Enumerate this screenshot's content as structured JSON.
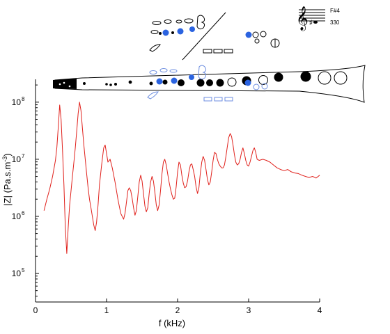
{
  "chart_data": {
    "type": "line",
    "title": "",
    "xlabel": "f (kHz)",
    "ylabel": "|Z| (Pa.s.m",
    "ylabel_sup": "-3",
    "ylabel_close": ")",
    "xlim": [
      0,
      4
    ],
    "ylim_log10": [
      4.5,
      8.4
    ],
    "y_scale": "log",
    "grid": false,
    "x_ticks": [
      0,
      1,
      2,
      3,
      4
    ],
    "x_tick_labels": [
      "0",
      "1",
      "2",
      "3",
      "4"
    ],
    "y_ticks_log10": [
      5,
      6,
      7,
      8
    ],
    "y_tick_bases": [
      "10",
      "10",
      "10",
      "10"
    ],
    "y_tick_exponents": [
      "5",
      "6",
      "7",
      "8"
    ],
    "color": "#e0201b",
    "series": [
      {
        "x": [
          0.12,
          0.16,
          0.2,
          0.24,
          0.28,
          0.3,
          0.32,
          0.34,
          0.36,
          0.38,
          0.4,
          0.42,
          0.44,
          0.46,
          0.48,
          0.5,
          0.52,
          0.54,
          0.56,
          0.58,
          0.6,
          0.62,
          0.64,
          0.66,
          0.68,
          0.7,
          0.72,
          0.74,
          0.76,
          0.78,
          0.8,
          0.82,
          0.84,
          0.86,
          0.88,
          0.9,
          0.93,
          0.96,
          0.98,
          1.0,
          1.02,
          1.05,
          1.08,
          1.12,
          1.16,
          1.2,
          1.24,
          1.26,
          1.28,
          1.3,
          1.32,
          1.34,
          1.36,
          1.38,
          1.4,
          1.42,
          1.44,
          1.46,
          1.48,
          1.5,
          1.52,
          1.54,
          1.56,
          1.58,
          1.6,
          1.62,
          1.64,
          1.66,
          1.68,
          1.7,
          1.72,
          1.74,
          1.76,
          1.78,
          1.8,
          1.82,
          1.84,
          1.86,
          1.88,
          1.9,
          1.92,
          1.94,
          1.96,
          1.98,
          2.0,
          2.02,
          2.04,
          2.06,
          2.08,
          2.1,
          2.12,
          2.14,
          2.16,
          2.18,
          2.2,
          2.22,
          2.24,
          2.26,
          2.28,
          2.3,
          2.32,
          2.34,
          2.36,
          2.38,
          2.4,
          2.42,
          2.44,
          2.46,
          2.48,
          2.5,
          2.52,
          2.54,
          2.56,
          2.58,
          2.6,
          2.62,
          2.64,
          2.66,
          2.68,
          2.7,
          2.72,
          2.74,
          2.76,
          2.78,
          2.8,
          2.82,
          2.84,
          2.86,
          2.88,
          2.9,
          2.92,
          2.94,
          2.96,
          2.98,
          3.0,
          3.02,
          3.04,
          3.06,
          3.08,
          3.1,
          3.12,
          3.15,
          3.2,
          3.25,
          3.3,
          3.35,
          3.4,
          3.45,
          3.5,
          3.55,
          3.6,
          3.65,
          3.7,
          3.75,
          3.8,
          3.85,
          3.9,
          3.95,
          4.0
        ],
        "y": [
          6.1,
          6.3,
          6.48,
          6.7,
          6.98,
          7.2,
          7.55,
          7.95,
          7.7,
          7.15,
          6.55,
          5.8,
          5.35,
          5.8,
          6.2,
          6.45,
          6.7,
          6.95,
          7.2,
          7.5,
          7.8,
          8.0,
          7.85,
          7.55,
          7.25,
          7.0,
          6.75,
          6.5,
          6.3,
          6.15,
          6.0,
          5.85,
          5.75,
          5.9,
          6.2,
          6.55,
          6.9,
          7.2,
          7.25,
          7.1,
          6.95,
          7.0,
          6.85,
          6.6,
          6.3,
          6.05,
          5.95,
          6.05,
          6.25,
          6.45,
          6.5,
          6.45,
          6.32,
          6.15,
          6.02,
          6.1,
          6.35,
          6.6,
          6.72,
          6.62,
          6.4,
          6.18,
          6.08,
          6.15,
          6.4,
          6.6,
          6.7,
          6.62,
          6.42,
          6.2,
          6.1,
          6.2,
          6.45,
          6.75,
          6.95,
          7.0,
          6.9,
          6.75,
          6.6,
          6.48,
          6.38,
          6.3,
          6.32,
          6.52,
          6.78,
          6.95,
          6.9,
          6.72,
          6.58,
          6.5,
          6.52,
          6.62,
          6.78,
          6.9,
          6.92,
          6.82,
          6.7,
          6.52,
          6.4,
          6.5,
          6.75,
          6.95,
          7.05,
          6.98,
          6.82,
          6.65,
          6.55,
          6.6,
          6.78,
          6.98,
          7.12,
          7.1,
          7.0,
          6.92,
          6.88,
          6.85,
          6.85,
          6.9,
          7.05,
          7.22,
          7.38,
          7.45,
          7.4,
          7.25,
          7.08,
          6.95,
          6.9,
          6.92,
          7.0,
          7.12,
          7.2,
          7.1,
          6.98,
          6.9,
          6.88,
          6.95,
          7.05,
          7.15,
          7.2,
          7.12,
          7.0,
          6.98,
          7.0,
          6.98,
          6.95,
          6.9,
          6.85,
          6.82,
          6.8,
          6.82,
          6.78,
          6.76,
          6.75,
          6.72,
          6.7,
          6.68,
          6.7,
          6.67,
          6.72
        ]
      }
    ]
  },
  "fingering_chart": {
    "note": "F#4",
    "frequency": "330"
  }
}
